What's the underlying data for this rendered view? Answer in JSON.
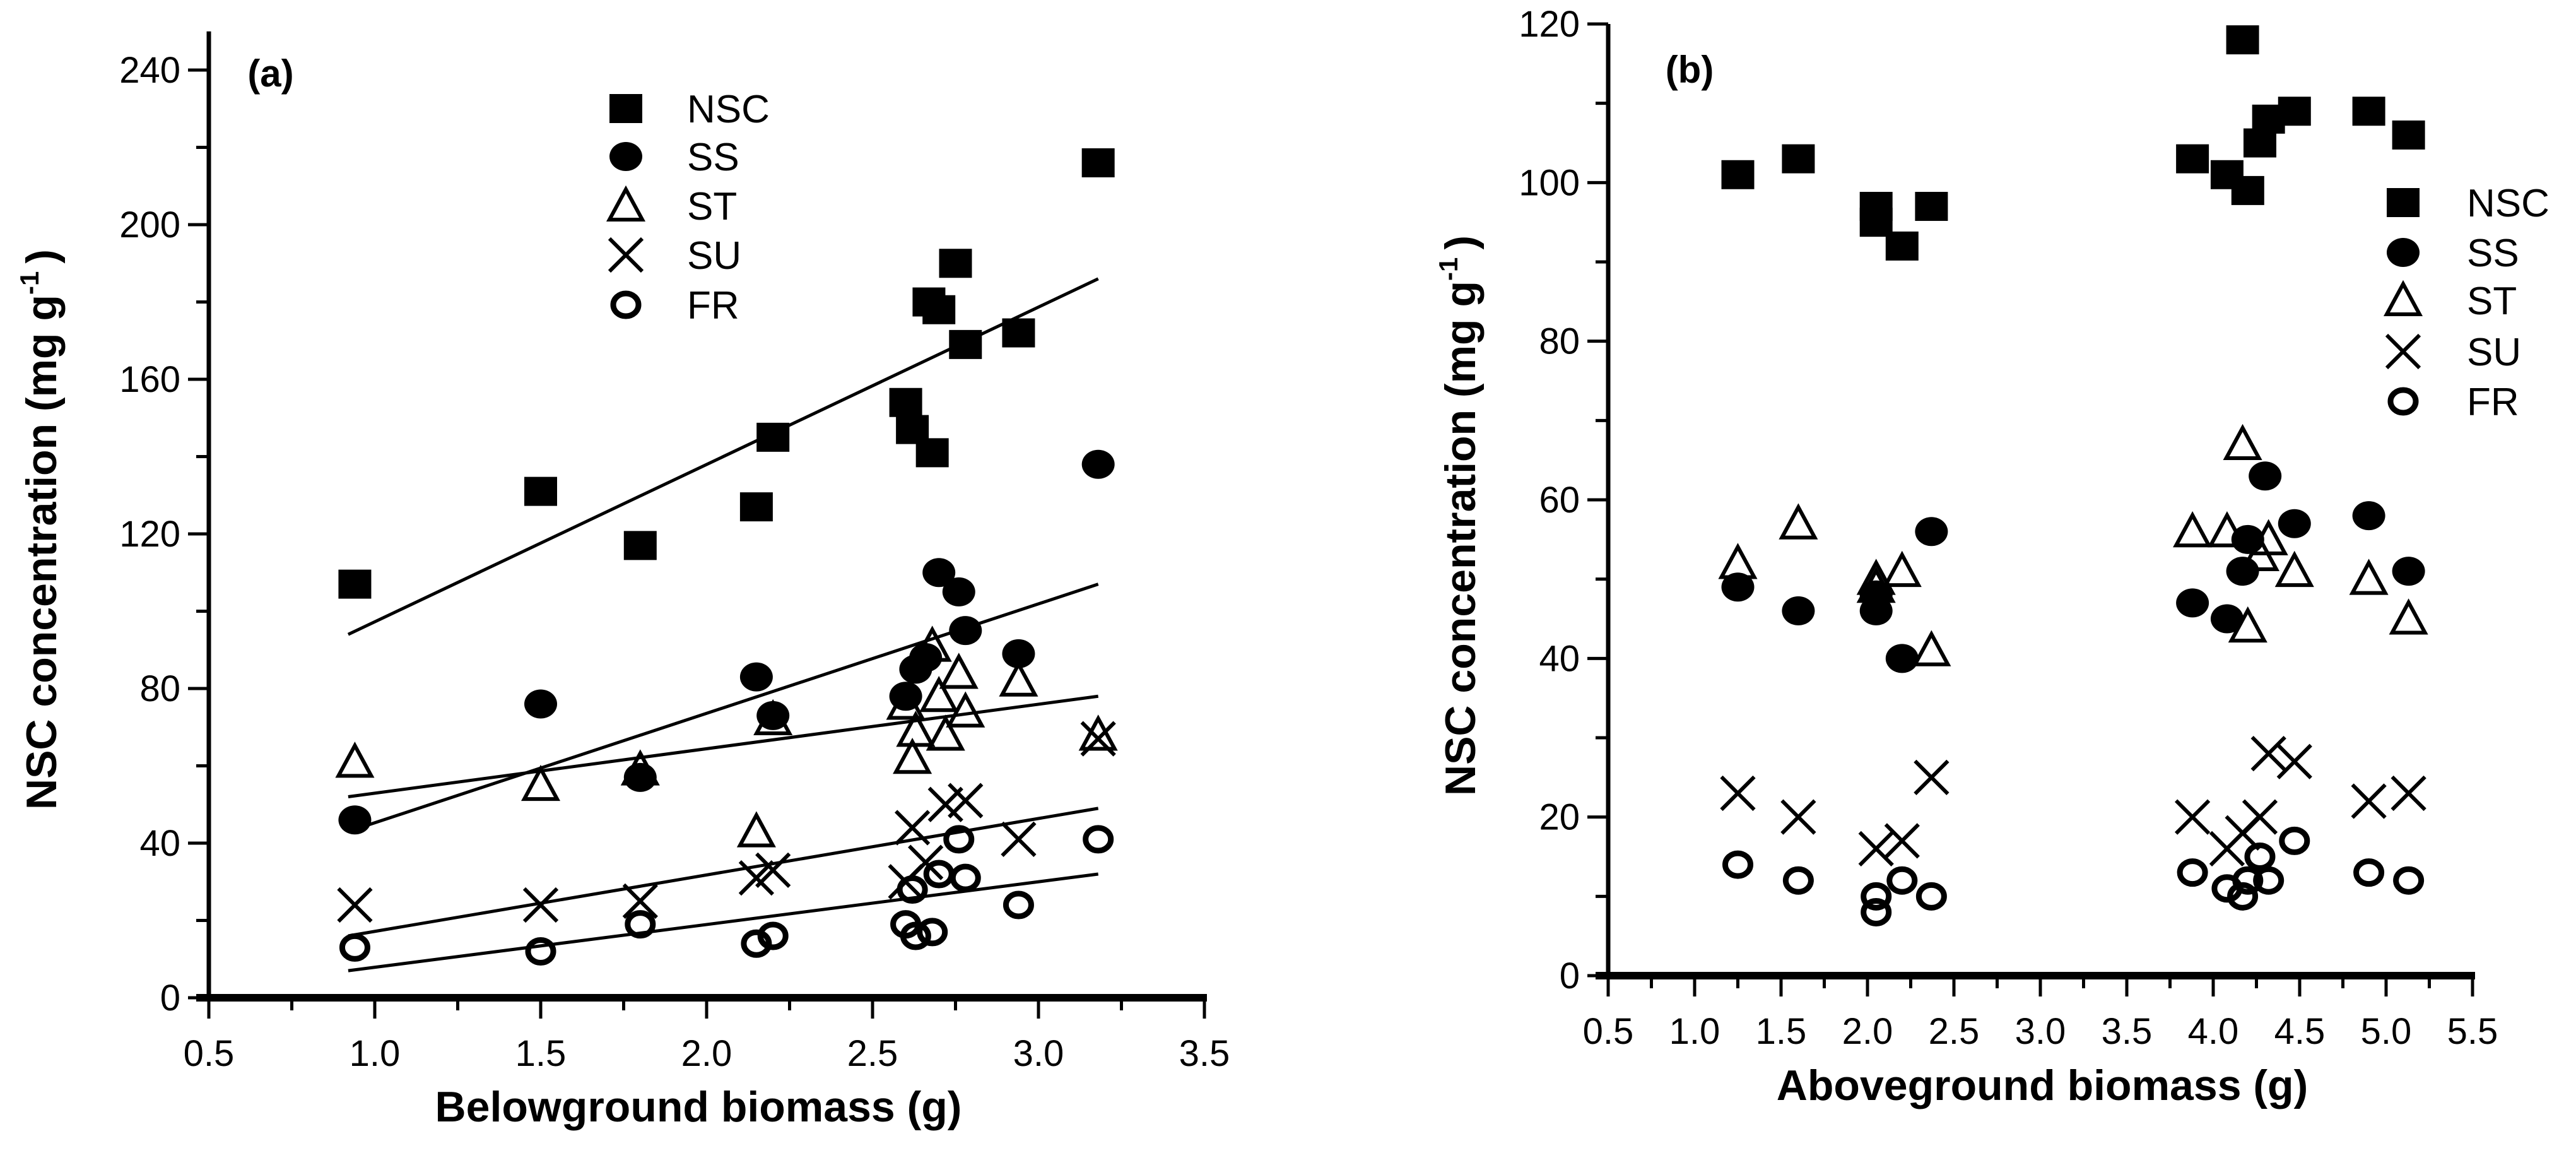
{
  "chart_data": [
    {
      "type": "scatter",
      "panel_label": "(a)",
      "xlabel": "Belowground biomass (g)",
      "ylabel": "NSC concentration  (mg g",
      "ylabel_sup": "-1",
      "ylabel_close": ")",
      "xlim": [
        0.5,
        3.5
      ],
      "ylim": [
        0,
        240
      ],
      "xticks": [
        "0.5",
        "1.0",
        "1.5",
        "2.0",
        "2.5",
        "3.0",
        "3.5"
      ],
      "yticks": [
        "0",
        "40",
        "80",
        "120",
        "160",
        "200",
        "240"
      ],
      "legend_position": "top-center",
      "series": [
        {
          "name": "NSC",
          "marker": "square",
          "points": [
            [
              0.94,
              107
            ],
            [
              1.5,
              131
            ],
            [
              1.8,
              117
            ],
            [
              2.15,
              127
            ],
            [
              2.2,
              145
            ],
            [
              2.6,
              154
            ],
            [
              2.62,
              147
            ],
            [
              2.68,
              141
            ],
            [
              2.67,
              180
            ],
            [
              2.7,
              178
            ],
            [
              2.75,
              190
            ],
            [
              2.78,
              169
            ],
            [
              2.94,
              172
            ],
            [
              3.18,
              216
            ]
          ],
          "fit": [
            [
              0.92,
              94
            ],
            [
              3.18,
              186
            ]
          ]
        },
        {
          "name": "SS",
          "marker": "circle",
          "points": [
            [
              0.94,
              46
            ],
            [
              1.5,
              76
            ],
            [
              1.8,
              57
            ],
            [
              2.15,
              83
            ],
            [
              2.2,
              73
            ],
            [
              2.6,
              78
            ],
            [
              2.63,
              85
            ],
            [
              2.66,
              88
            ],
            [
              2.7,
              110
            ],
            [
              2.76,
              105
            ],
            [
              2.78,
              95
            ],
            [
              2.94,
              89
            ],
            [
              3.18,
              138
            ]
          ],
          "fit": [
            [
              0.92,
              43
            ],
            [
              3.18,
              107
            ]
          ]
        },
        {
          "name": "ST",
          "marker": "triangle",
          "points": [
            [
              0.94,
              61
            ],
            [
              1.5,
              55
            ],
            [
              1.8,
              59
            ],
            [
              2.15,
              43
            ],
            [
              2.2,
              72
            ],
            [
              2.6,
              76
            ],
            [
              2.62,
              62
            ],
            [
              2.63,
              69
            ],
            [
              2.68,
              91
            ],
            [
              2.7,
              78
            ],
            [
              2.72,
              68
            ],
            [
              2.76,
              84
            ],
            [
              2.78,
              74
            ],
            [
              2.94,
              82
            ],
            [
              3.18,
              68
            ]
          ],
          "fit": [
            [
              0.92,
              52
            ],
            [
              3.18,
              78
            ]
          ]
        },
        {
          "name": "SU",
          "marker": "cross",
          "points": [
            [
              0.94,
              24
            ],
            [
              1.5,
              24
            ],
            [
              1.8,
              25
            ],
            [
              2.15,
              31
            ],
            [
              2.2,
              33
            ],
            [
              2.6,
              30
            ],
            [
              2.62,
              44
            ],
            [
              2.66,
              35
            ],
            [
              2.72,
              50
            ],
            [
              2.78,
              51
            ],
            [
              2.94,
              41
            ],
            [
              3.18,
              67
            ]
          ],
          "fit": [
            [
              0.92,
              16
            ],
            [
              3.18,
              49
            ]
          ]
        },
        {
          "name": "FR",
          "marker": "open-circle",
          "points": [
            [
              0.94,
              13
            ],
            [
              1.5,
              12
            ],
            [
              1.8,
              19
            ],
            [
              2.15,
              14
            ],
            [
              2.2,
              16
            ],
            [
              2.6,
              19
            ],
            [
              2.63,
              16
            ],
            [
              2.62,
              28
            ],
            [
              2.68,
              17
            ],
            [
              2.7,
              32
            ],
            [
              2.76,
              41
            ],
            [
              2.78,
              31
            ],
            [
              2.94,
              24
            ],
            [
              3.18,
              41
            ]
          ],
          "fit": [
            [
              0.92,
              7
            ],
            [
              3.18,
              32
            ]
          ]
        }
      ]
    },
    {
      "type": "scatter",
      "panel_label": "(b)",
      "xlabel": "Aboveground biomass (g)",
      "ylabel": "NSC concentration (mg g",
      "ylabel_sup": "-1",
      "ylabel_close": ")",
      "xlim": [
        0.5,
        5.5
      ],
      "ylim": [
        0,
        120
      ],
      "xticks": [
        "0.5",
        "1.0",
        "1.5",
        "2.0",
        "2.5",
        "3.0",
        "3.5",
        "4.0",
        "4.5",
        "5.0",
        "5.5"
      ],
      "yticks": [
        "0",
        "20",
        "40",
        "60",
        "80",
        "100",
        "120"
      ],
      "legend_position": "right",
      "series": [
        {
          "name": "NSC",
          "marker": "square",
          "points": [
            [
              1.25,
              101
            ],
            [
              1.6,
              103
            ],
            [
              2.05,
              97
            ],
            [
              2.05,
              95
            ],
            [
              2.2,
              92
            ],
            [
              2.37,
              97
            ],
            [
              3.88,
              103
            ],
            [
              4.08,
              101
            ],
            [
              4.17,
              118
            ],
            [
              4.2,
              99
            ],
            [
              4.27,
              105
            ],
            [
              4.32,
              108
            ],
            [
              4.47,
              109
            ],
            [
              4.9,
              109
            ],
            [
              5.13,
              106
            ]
          ]
        },
        {
          "name": "SS",
          "marker": "circle",
          "points": [
            [
              1.25,
              49
            ],
            [
              1.6,
              46
            ],
            [
              2.05,
              46
            ],
            [
              2.05,
              48
            ],
            [
              2.2,
              40
            ],
            [
              2.37,
              56
            ],
            [
              3.88,
              47
            ],
            [
              4.08,
              45
            ],
            [
              4.17,
              51
            ],
            [
              4.2,
              55
            ],
            [
              4.3,
              63
            ],
            [
              4.47,
              57
            ],
            [
              4.9,
              58
            ],
            [
              5.13,
              51
            ]
          ]
        },
        {
          "name": "ST",
          "marker": "triangle",
          "points": [
            [
              1.25,
              52
            ],
            [
              1.6,
              57
            ],
            [
              2.05,
              50
            ],
            [
              2.05,
              49
            ],
            [
              2.2,
              51
            ],
            [
              2.37,
              41
            ],
            [
              3.88,
              56
            ],
            [
              4.08,
              56
            ],
            [
              4.17,
              67
            ],
            [
              4.2,
              44
            ],
            [
              4.27,
              53
            ],
            [
              4.32,
              55
            ],
            [
              4.47,
              51
            ],
            [
              4.9,
              50
            ],
            [
              5.13,
              45
            ]
          ]
        },
        {
          "name": "SU",
          "marker": "cross",
          "points": [
            [
              1.25,
              23
            ],
            [
              1.6,
              20
            ],
            [
              2.05,
              16
            ],
            [
              2.2,
              17
            ],
            [
              2.37,
              25
            ],
            [
              3.88,
              20
            ],
            [
              4.08,
              16
            ],
            [
              4.17,
              18
            ],
            [
              4.27,
              20
            ],
            [
              4.32,
              28
            ],
            [
              4.47,
              27
            ],
            [
              4.9,
              22
            ],
            [
              5.13,
              23
            ]
          ]
        },
        {
          "name": "FR",
          "marker": "open-circle",
          "points": [
            [
              1.25,
              14
            ],
            [
              1.6,
              12
            ],
            [
              2.05,
              10
            ],
            [
              2.05,
              8
            ],
            [
              2.2,
              12
            ],
            [
              2.37,
              10
            ],
            [
              3.88,
              13
            ],
            [
              4.08,
              11
            ],
            [
              4.17,
              10
            ],
            [
              4.2,
              12
            ],
            [
              4.27,
              15
            ],
            [
              4.32,
              12
            ],
            [
              4.47,
              17
            ],
            [
              4.9,
              13
            ],
            [
              5.13,
              12
            ]
          ]
        }
      ]
    }
  ]
}
